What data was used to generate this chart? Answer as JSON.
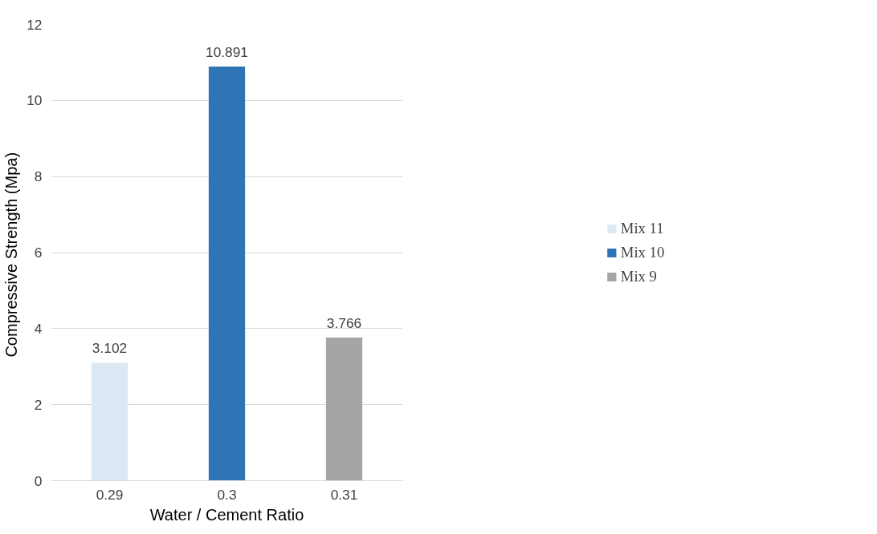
{
  "chart_data": {
    "type": "bar",
    "xlabel": "Water / Cement Ratio",
    "ylabel": "Compressive Strength  (Mpa)",
    "categories": [
      "0.29",
      "0.3",
      "0.31"
    ],
    "stacked": true,
    "series": [
      {
        "name": "Mix 11",
        "color": "#dde8f5",
        "values": [
          3.102,
          null,
          null
        ]
      },
      {
        "name": "Mix 10",
        "color": "#2e75b6",
        "values": [
          null,
          10.891,
          null
        ]
      },
      {
        "name": "Mix 9",
        "color": "#a5a5a5",
        "values": [
          null,
          null,
          3.766
        ]
      }
    ],
    "ylim": [
      0,
      12
    ],
    "yticks": [
      0,
      2,
      4,
      6,
      8,
      10,
      12
    ],
    "grid": "y",
    "legend": "right",
    "data_labels": true
  }
}
